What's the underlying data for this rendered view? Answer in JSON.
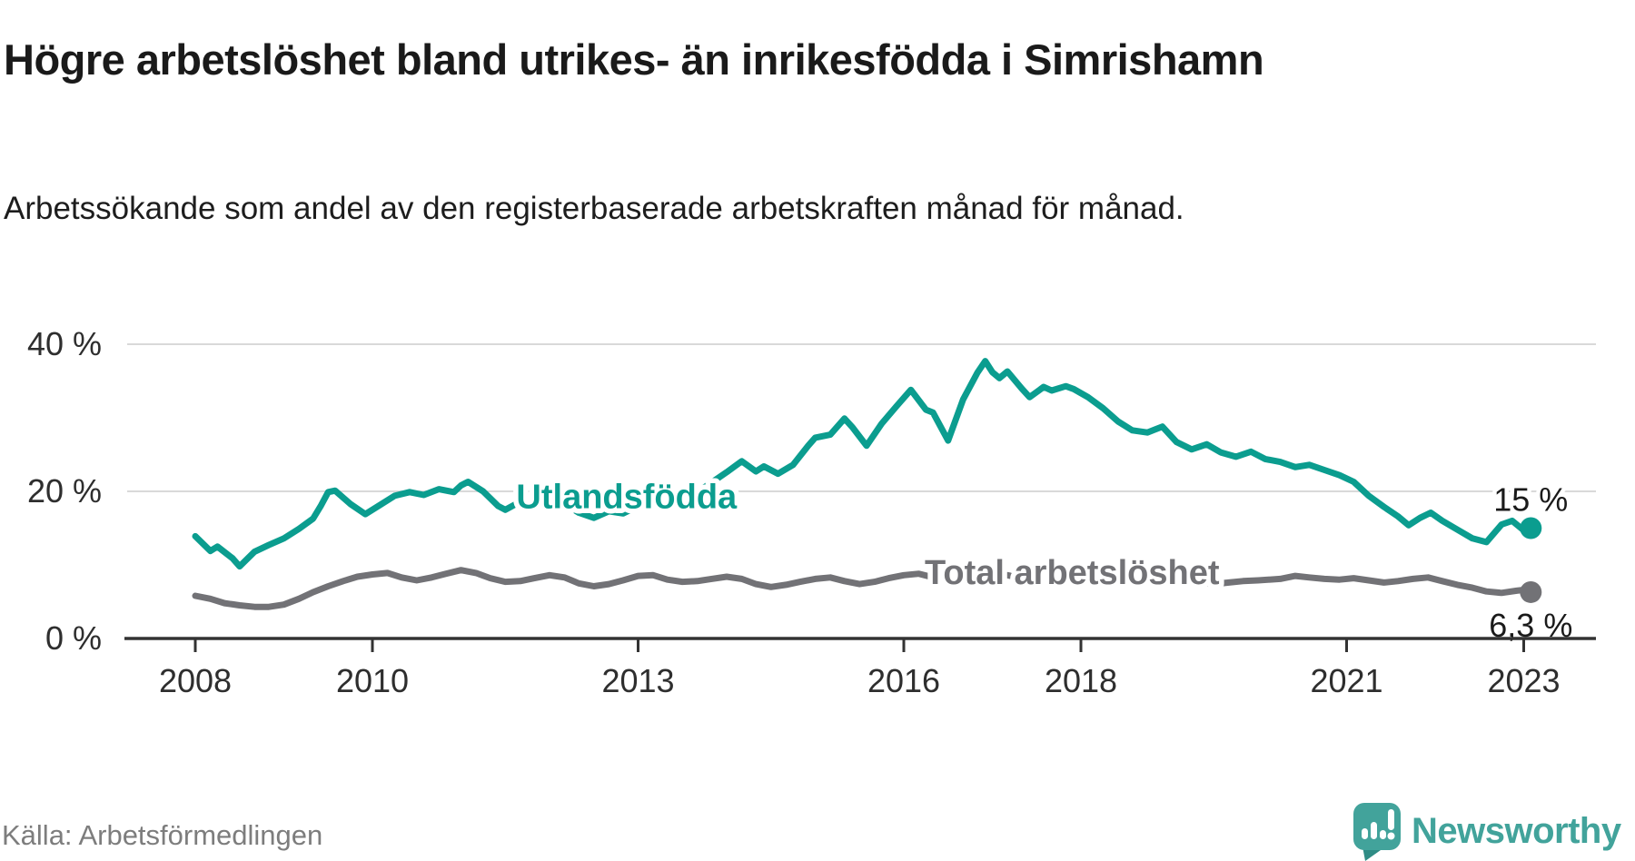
{
  "header": {
    "title": "Högre arbetslöshet bland utrikes- än inrikesfödda i Simrishamn",
    "subtitle": "Arbetssökande som andel av den registerbaserade arbetskraften månad för månad."
  },
  "footer": {
    "source": "Källa: Arbetsförmedlingen",
    "brand": "Newsworthy"
  },
  "colors": {
    "foreign_born_line": "#0b9d8f",
    "total_line": "#727276",
    "axis": "#333333",
    "gridline": "#d9d9d9",
    "end_label_text": "#1a1a1a",
    "brand_teal": "#42a39b"
  },
  "chart_data": {
    "type": "line",
    "title": "Högre arbetslöshet bland utrikes- än inrikesfödda i Simrishamn",
    "subtitle": "Arbetssökande som andel av den registerbaserade arbetskraften månad för månad.",
    "unit": "%",
    "xlim": [
      2007.75,
      2023.6
    ],
    "ylim": [
      0,
      42
    ],
    "grid": "horizontal",
    "legend_position": "inline-labels",
    "x_ticks": [
      2008,
      2010,
      2013,
      2016,
      2018,
      2021,
      2023
    ],
    "x_tick_labels": [
      "2008",
      "2010",
      "2013",
      "2016",
      "2018",
      "2021",
      "2023"
    ],
    "y_ticks": [
      0,
      20,
      40
    ],
    "y_tick_labels": [
      "0 %",
      "20 %",
      "40 %"
    ],
    "series": [
      {
        "name": "Total arbetslöshet",
        "color": "#727276",
        "end_label": "6,3 %",
        "end_value": 6.3,
        "label_at": [
          2017.9,
          7.4
        ],
        "points": [
          [
            2008.0,
            5.8
          ],
          [
            2008.17,
            5.4
          ],
          [
            2008.33,
            4.8
          ],
          [
            2008.5,
            4.5
          ],
          [
            2008.67,
            4.3
          ],
          [
            2008.83,
            4.3
          ],
          [
            2009.0,
            4.6
          ],
          [
            2009.17,
            5.4
          ],
          [
            2009.33,
            6.3
          ],
          [
            2009.5,
            7.1
          ],
          [
            2009.67,
            7.8
          ],
          [
            2009.83,
            8.4
          ],
          [
            2010.0,
            8.7
          ],
          [
            2010.17,
            8.9
          ],
          [
            2010.33,
            8.3
          ],
          [
            2010.5,
            7.9
          ],
          [
            2010.67,
            8.3
          ],
          [
            2010.83,
            8.8
          ],
          [
            2011.0,
            9.3
          ],
          [
            2011.17,
            8.9
          ],
          [
            2011.33,
            8.2
          ],
          [
            2011.5,
            7.7
          ],
          [
            2011.67,
            7.8
          ],
          [
            2011.83,
            8.2
          ],
          [
            2012.0,
            8.6
          ],
          [
            2012.17,
            8.3
          ],
          [
            2012.33,
            7.5
          ],
          [
            2012.5,
            7.1
          ],
          [
            2012.67,
            7.4
          ],
          [
            2012.83,
            7.9
          ],
          [
            2013.0,
            8.5
          ],
          [
            2013.17,
            8.6
          ],
          [
            2013.33,
            8.0
          ],
          [
            2013.5,
            7.7
          ],
          [
            2013.67,
            7.8
          ],
          [
            2013.83,
            8.1
          ],
          [
            2014.0,
            8.4
          ],
          [
            2014.17,
            8.1
          ],
          [
            2014.33,
            7.4
          ],
          [
            2014.5,
            7.0
          ],
          [
            2014.67,
            7.3
          ],
          [
            2014.83,
            7.7
          ],
          [
            2015.0,
            8.1
          ],
          [
            2015.17,
            8.3
          ],
          [
            2015.33,
            7.8
          ],
          [
            2015.5,
            7.4
          ],
          [
            2015.67,
            7.7
          ],
          [
            2015.83,
            8.2
          ],
          [
            2016.0,
            8.6
          ],
          [
            2016.17,
            8.8
          ],
          [
            2016.33,
            8.3
          ],
          [
            2016.5,
            7.8
          ],
          [
            2016.67,
            8.1
          ],
          [
            2016.83,
            8.5
          ],
          [
            2017.0,
            8.8
          ],
          [
            2017.17,
            8.6
          ],
          [
            2017.33,
            8.2
          ],
          [
            2017.5,
            7.9
          ],
          [
            2017.67,
            8.1
          ],
          [
            2017.83,
            8.4
          ],
          [
            2018.0,
            8.6
          ],
          [
            2018.17,
            8.3
          ],
          [
            2018.33,
            7.9
          ],
          [
            2018.5,
            7.6
          ],
          [
            2018.67,
            7.8
          ],
          [
            2018.83,
            8.0
          ],
          [
            2019.0,
            8.2
          ],
          [
            2019.17,
            8.0
          ],
          [
            2019.33,
            7.6
          ],
          [
            2019.5,
            7.4
          ],
          [
            2019.67,
            7.6
          ],
          [
            2019.83,
            7.8
          ],
          [
            2020.0,
            7.9
          ],
          [
            2020.25,
            8.1
          ],
          [
            2020.42,
            8.5
          ],
          [
            2020.58,
            8.3
          ],
          [
            2020.75,
            8.1
          ],
          [
            2020.92,
            8.0
          ],
          [
            2021.08,
            8.2
          ],
          [
            2021.25,
            7.9
          ],
          [
            2021.42,
            7.6
          ],
          [
            2021.58,
            7.8
          ],
          [
            2021.75,
            8.1
          ],
          [
            2021.92,
            8.3
          ],
          [
            2022.08,
            7.8
          ],
          [
            2022.25,
            7.3
          ],
          [
            2022.42,
            6.9
          ],
          [
            2022.58,
            6.4
          ],
          [
            2022.75,
            6.2
          ],
          [
            2022.92,
            6.5
          ],
          [
            2023.0,
            6.6
          ],
          [
            2023.08,
            6.3
          ]
        ]
      },
      {
        "name": "Utlandsfödda",
        "color": "#0b9d8f",
        "end_label": "15 %",
        "end_value": 15,
        "label_at": [
          2012.87,
          17.7
        ],
        "points": [
          [
            2008.0,
            13.9
          ],
          [
            2008.17,
            11.9
          ],
          [
            2008.25,
            12.5
          ],
          [
            2008.42,
            10.9
          ],
          [
            2008.5,
            9.8
          ],
          [
            2008.67,
            11.8
          ],
          [
            2008.83,
            12.7
          ],
          [
            2009.0,
            13.6
          ],
          [
            2009.17,
            14.9
          ],
          [
            2009.33,
            16.3
          ],
          [
            2009.42,
            18.1
          ],
          [
            2009.5,
            19.9
          ],
          [
            2009.58,
            20.1
          ],
          [
            2009.75,
            18.3
          ],
          [
            2009.92,
            16.9
          ],
          [
            2010.08,
            18.1
          ],
          [
            2010.25,
            19.4
          ],
          [
            2010.42,
            19.9
          ],
          [
            2010.58,
            19.5
          ],
          [
            2010.75,
            20.3
          ],
          [
            2010.92,
            19.9
          ],
          [
            2011.0,
            20.8
          ],
          [
            2011.08,
            21.3
          ],
          [
            2011.25,
            20.0
          ],
          [
            2011.42,
            18.0
          ],
          [
            2011.5,
            17.5
          ],
          [
            2011.67,
            18.6
          ],
          [
            2011.83,
            18.2
          ],
          [
            2012.0,
            19.0
          ],
          [
            2012.17,
            18.3
          ],
          [
            2012.33,
            17.1
          ],
          [
            2012.5,
            16.4
          ],
          [
            2012.67,
            17.3
          ],
          [
            2012.83,
            17.0
          ],
          [
            2013.0,
            18.0
          ],
          [
            2013.17,
            18.5
          ],
          [
            2013.33,
            17.9
          ],
          [
            2013.5,
            18.8
          ],
          [
            2013.67,
            19.9
          ],
          [
            2013.83,
            21.2
          ],
          [
            2014.0,
            22.6
          ],
          [
            2014.17,
            24.1
          ],
          [
            2014.33,
            22.7
          ],
          [
            2014.42,
            23.4
          ],
          [
            2014.58,
            22.4
          ],
          [
            2014.75,
            23.6
          ],
          [
            2014.92,
            26.2
          ],
          [
            2015.0,
            27.3
          ],
          [
            2015.17,
            27.7
          ],
          [
            2015.33,
            29.9
          ],
          [
            2015.42,
            28.7
          ],
          [
            2015.58,
            26.2
          ],
          [
            2015.75,
            29.2
          ],
          [
            2015.92,
            31.6
          ],
          [
            2016.08,
            33.8
          ],
          [
            2016.25,
            31.1
          ],
          [
            2016.33,
            30.7
          ],
          [
            2016.5,
            26.9
          ],
          [
            2016.67,
            32.5
          ],
          [
            2016.83,
            36.1
          ],
          [
            2016.92,
            37.7
          ],
          [
            2017.0,
            36.2
          ],
          [
            2017.08,
            35.4
          ],
          [
            2017.17,
            36.3
          ],
          [
            2017.33,
            34.0
          ],
          [
            2017.42,
            32.8
          ],
          [
            2017.58,
            34.2
          ],
          [
            2017.67,
            33.7
          ],
          [
            2017.83,
            34.3
          ],
          [
            2017.92,
            33.9
          ],
          [
            2018.08,
            32.8
          ],
          [
            2018.25,
            31.3
          ],
          [
            2018.42,
            29.5
          ],
          [
            2018.58,
            28.3
          ],
          [
            2018.75,
            28.0
          ],
          [
            2018.92,
            28.8
          ],
          [
            2019.08,
            26.7
          ],
          [
            2019.25,
            25.7
          ],
          [
            2019.42,
            26.4
          ],
          [
            2019.58,
            25.3
          ],
          [
            2019.75,
            24.7
          ],
          [
            2019.92,
            25.4
          ],
          [
            2020.08,
            24.4
          ],
          [
            2020.25,
            24.0
          ],
          [
            2020.42,
            23.3
          ],
          [
            2020.58,
            23.6
          ],
          [
            2020.75,
            22.9
          ],
          [
            2020.92,
            22.2
          ],
          [
            2021.08,
            21.3
          ],
          [
            2021.25,
            19.4
          ],
          [
            2021.42,
            17.9
          ],
          [
            2021.58,
            16.6
          ],
          [
            2021.7,
            15.4
          ],
          [
            2021.83,
            16.4
          ],
          [
            2021.95,
            17.1
          ],
          [
            2022.08,
            16.0
          ],
          [
            2022.25,
            14.8
          ],
          [
            2022.42,
            13.6
          ],
          [
            2022.58,
            13.1
          ],
          [
            2022.75,
            15.5
          ],
          [
            2022.87,
            16.0
          ],
          [
            2023.0,
            14.7
          ],
          [
            2023.08,
            15.0
          ]
        ]
      }
    ]
  }
}
